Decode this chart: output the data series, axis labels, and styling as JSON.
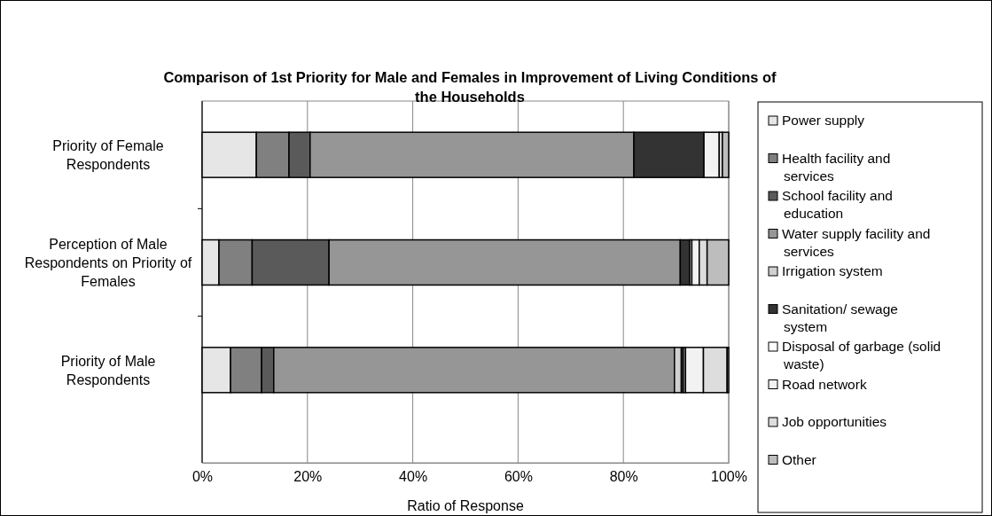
{
  "chart_data": {
    "type": "bar",
    "orientation": "horizontal",
    "stacked": true,
    "title": "Comparison of 1st Priority for Male and Females in Improvement of Living Conditions of the Households",
    "xlabel": "Ratio of Response",
    "categories": [
      "Priority of Female Respondents",
      "Perception of Male Respondents on Priority of Females",
      "Priority of Male Respondents"
    ],
    "xlim": [
      0,
      100
    ],
    "xticks": [
      {
        "value": 0,
        "label": "0%"
      },
      {
        "value": 20,
        "label": "20%"
      },
      {
        "value": 40,
        "label": "40%"
      },
      {
        "value": 60,
        "label": "60%"
      },
      {
        "value": 80,
        "label": "80%"
      },
      {
        "value": 100,
        "label": "100%"
      }
    ],
    "grid": "x",
    "legend": "right",
    "series": [
      {
        "name": "Power supply",
        "color": "#e6e6e6",
        "values": [
          10.3,
          3.2,
          5.4
        ]
      },
      {
        "name": "Health facility and services",
        "color": "#808080",
        "values": [
          6.2,
          6.3,
          5.9
        ]
      },
      {
        "name": "School facility and education",
        "color": "#5a5a5a",
        "values": [
          4.0,
          14.6,
          2.3
        ]
      },
      {
        "name": "Water supply facility and services",
        "color": "#969696",
        "values": [
          61.5,
          66.7,
          76.1
        ]
      },
      {
        "name": "Irrigation system",
        "color": "#d0d0d0",
        "values": [
          0,
          0,
          1.3
        ]
      },
      {
        "name": "Sanitation/ sewage system",
        "color": "#333333",
        "values": [
          13.3,
          1.8,
          0.4
        ]
      },
      {
        "name": "Disposal of garbage (solid waste)",
        "color": "#ffffff",
        "values": [
          0,
          0.4,
          0.4
        ]
      },
      {
        "name": "Road network",
        "color": "#f2f2f2",
        "values": [
          2.9,
          1.4,
          3.4
        ]
      },
      {
        "name": "Job opportunities",
        "color": "#dddddd",
        "values": [
          0.6,
          1.5,
          4.5
        ]
      },
      {
        "name": "Other",
        "color": "#bdbdbd",
        "values": [
          1.2,
          4.1,
          0.3
        ]
      }
    ]
  }
}
